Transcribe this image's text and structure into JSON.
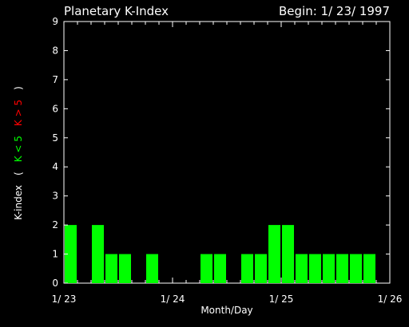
{
  "title": "Planetary K-Index",
  "begin_label": "Begin:  1/ 23/ 1997",
  "chart_data": {
    "type": "bar",
    "xlabel": "Month/Day",
    "ylabel": {
      "parts": [
        {
          "text": "K-index",
          "color": "#ffffff"
        },
        {
          "text": "(",
          "color": "#ffffff"
        },
        {
          "text": "K < 5",
          "color": "#00ff00"
        },
        {
          "text": "K > 5",
          "color": "#ff0000"
        },
        {
          "text": ")",
          "color": "#ffffff"
        }
      ]
    },
    "ylim": [
      0,
      9
    ],
    "yticks": [
      0,
      1,
      2,
      3,
      4,
      5,
      6,
      7,
      8,
      9
    ],
    "xlim": [
      0,
      72
    ],
    "xticks": [
      {
        "hour": 0,
        "label": "1/ 23"
      },
      {
        "hour": 24,
        "label": "1/ 24"
      },
      {
        "hour": 48,
        "label": "1/ 25"
      },
      {
        "hour": 72,
        "label": "1/ 26"
      }
    ],
    "interval_hours": 3,
    "bars": [
      {
        "start_hour": 0,
        "value": 2
      },
      {
        "start_hour": 6,
        "value": 2
      },
      {
        "start_hour": 9,
        "value": 1
      },
      {
        "start_hour": 12,
        "value": 1
      },
      {
        "start_hour": 18,
        "value": 1
      },
      {
        "start_hour": 30,
        "value": 1
      },
      {
        "start_hour": 33,
        "value": 1
      },
      {
        "start_hour": 39,
        "value": 1
      },
      {
        "start_hour": 42,
        "value": 1
      },
      {
        "start_hour": 45,
        "value": 2
      },
      {
        "start_hour": 48,
        "value": 2
      },
      {
        "start_hour": 51,
        "value": 1
      },
      {
        "start_hour": 54,
        "value": 1
      },
      {
        "start_hour": 57,
        "value": 1
      },
      {
        "start_hour": 60,
        "value": 1
      },
      {
        "start_hour": 63,
        "value": 1
      },
      {
        "start_hour": 66,
        "value": 1
      }
    ],
    "colors": {
      "low": "#00ff00",
      "high": "#ff0000",
      "axis": "#ffffff",
      "background": "#000000"
    },
    "grid": false
  }
}
